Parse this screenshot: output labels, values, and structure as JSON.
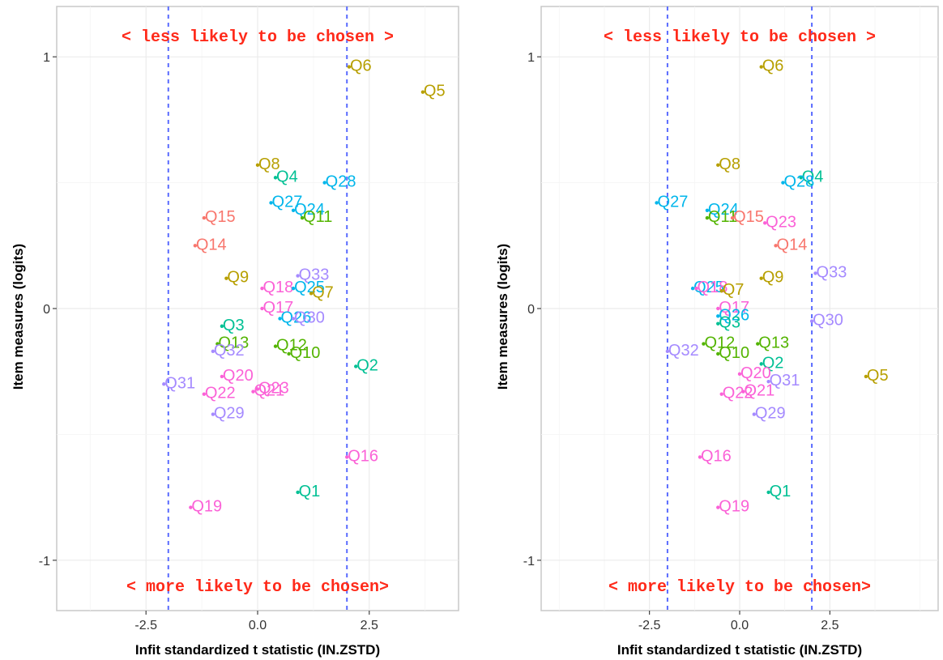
{
  "chart_data": [
    {
      "type": "scatter",
      "xlabel": "Infit standardized t statistic (IN.ZSTD)",
      "ylabel": "Item measures (logits)",
      "xlim": [
        -4.5,
        4.5
      ],
      "ylim": [
        -1.2,
        1.2
      ],
      "xticks": [
        -2.5,
        0.0,
        2.5
      ],
      "xtick_labels": [
        "-2.5",
        "0.0",
        "2.5"
      ],
      "yticks": [
        -1,
        0,
        1
      ],
      "ytick_labels": [
        "-1",
        "0",
        "1"
      ],
      "ref_lines_x": [
        -2,
        2
      ],
      "grid": true,
      "annotations": {
        "top": "< less likely to be chosen >",
        "bottom": "< more likely to be chosen>"
      },
      "points": [
        {
          "label": "Q6",
          "x": 2.05,
          "y": 0.96,
          "color": "#b79f00"
        },
        {
          "label": "Q5",
          "x": 3.7,
          "y": 0.86,
          "color": "#b79f00"
        },
        {
          "label": "Q8",
          "x": 0.0,
          "y": 0.57,
          "color": "#b79f00"
        },
        {
          "label": "Q4",
          "x": 0.4,
          "y": 0.52,
          "color": "#00c094"
        },
        {
          "label": "Q28",
          "x": 1.5,
          "y": 0.5,
          "color": "#00b6eb"
        },
        {
          "label": "Q27",
          "x": 0.3,
          "y": 0.42,
          "color": "#00b6eb"
        },
        {
          "label": "Q24",
          "x": 0.8,
          "y": 0.39,
          "color": "#00b6eb"
        },
        {
          "label": "Q11",
          "x": 1.0,
          "y": 0.36,
          "color": "#53b400"
        },
        {
          "label": "Q15",
          "x": -1.2,
          "y": 0.36,
          "color": "#f8766d"
        },
        {
          "label": "Q14",
          "x": -1.4,
          "y": 0.25,
          "color": "#f8766d"
        },
        {
          "label": "Q9",
          "x": -0.7,
          "y": 0.12,
          "color": "#b79f00"
        },
        {
          "label": "Q33",
          "x": 0.9,
          "y": 0.13,
          "color": "#a58aff"
        },
        {
          "label": "Q18",
          "x": 0.1,
          "y": 0.08,
          "color": "#fb61d7"
        },
        {
          "label": "Q25",
          "x": 0.8,
          "y": 0.08,
          "color": "#00b6eb"
        },
        {
          "label": "Q7",
          "x": 1.2,
          "y": 0.06,
          "color": "#b79f00"
        },
        {
          "label": "Q17",
          "x": 0.1,
          "y": 0.0,
          "color": "#fb61d7"
        },
        {
          "label": "Q26",
          "x": 0.5,
          "y": -0.04,
          "color": "#00b6eb"
        },
        {
          "label": "Q30",
          "x": 0.8,
          "y": -0.04,
          "color": "#a58aff"
        },
        {
          "label": "Q3",
          "x": -0.8,
          "y": -0.07,
          "color": "#00c094"
        },
        {
          "label": "Q13",
          "x": -0.9,
          "y": -0.14,
          "color": "#53b400"
        },
        {
          "label": "Q12",
          "x": 0.4,
          "y": -0.15,
          "color": "#53b400"
        },
        {
          "label": "Q32",
          "x": -1.0,
          "y": -0.17,
          "color": "#a58aff"
        },
        {
          "label": "Q10",
          "x": 0.7,
          "y": -0.18,
          "color": "#53b400"
        },
        {
          "label": "Q2",
          "x": 2.2,
          "y": -0.23,
          "color": "#00c094"
        },
        {
          "label": "Q20",
          "x": -0.8,
          "y": -0.27,
          "color": "#fb61d7"
        },
        {
          "label": "Q31",
          "x": -2.1,
          "y": -0.3,
          "color": "#a58aff"
        },
        {
          "label": "Q23",
          "x": 0.0,
          "y": -0.32,
          "color": "#fb61d7"
        },
        {
          "label": "Q21",
          "x": -0.1,
          "y": -0.33,
          "color": "#fb61d7"
        },
        {
          "label": "Q22",
          "x": -1.2,
          "y": -0.34,
          "color": "#fb61d7"
        },
        {
          "label": "Q29",
          "x": -1.0,
          "y": -0.42,
          "color": "#a58aff"
        },
        {
          "label": "Q16",
          "x": 2.0,
          "y": -0.59,
          "color": "#fb61d7"
        },
        {
          "label": "Q1",
          "x": 0.9,
          "y": -0.73,
          "color": "#00c094"
        },
        {
          "label": "Q19",
          "x": -1.5,
          "y": -0.79,
          "color": "#fb61d7"
        }
      ]
    },
    {
      "type": "scatter",
      "xlabel": "Infit standardized t statistic (IN.ZSTD)",
      "ylabel": "Item measures (logits)",
      "xlim": [
        -5.5,
        5.5
      ],
      "ylim": [
        -1.2,
        1.2
      ],
      "xticks": [
        -2.5,
        0.0,
        2.5
      ],
      "xtick_labels": [
        "-2.5",
        "0.0",
        "2.5"
      ],
      "yticks": [
        -1,
        0,
        1
      ],
      "ytick_labels": [
        "-1",
        "0",
        "1"
      ],
      "ref_lines_x": [
        -2,
        2
      ],
      "grid": true,
      "annotations": {
        "top": "< less likely to be chosen >",
        "bottom": "< more likely to be chosen>"
      },
      "points": [
        {
          "label": "Q6",
          "x": 0.6,
          "y": 0.96,
          "color": "#b79f00"
        },
        {
          "label": "Q8",
          "x": -0.6,
          "y": 0.57,
          "color": "#b79f00"
        },
        {
          "label": "Q4",
          "x": 1.7,
          "y": 0.52,
          "color": "#00c094"
        },
        {
          "label": "Q28",
          "x": 1.2,
          "y": 0.5,
          "color": "#00b6eb"
        },
        {
          "label": "Q27",
          "x": -2.3,
          "y": 0.42,
          "color": "#00b6eb"
        },
        {
          "label": "Q24",
          "x": -0.9,
          "y": 0.39,
          "color": "#00b6eb"
        },
        {
          "label": "Q11",
          "x": -0.9,
          "y": 0.36,
          "color": "#53b400"
        },
        {
          "label": "Q15",
          "x": -0.2,
          "y": 0.36,
          "color": "#f8766d"
        },
        {
          "label": "Q23",
          "x": 0.7,
          "y": 0.34,
          "color": "#fb61d7"
        },
        {
          "label": "Q14",
          "x": 1.0,
          "y": 0.25,
          "color": "#f8766d"
        },
        {
          "label": "Q9",
          "x": 0.6,
          "y": 0.12,
          "color": "#b79f00"
        },
        {
          "label": "Q33",
          "x": 2.1,
          "y": 0.14,
          "color": "#a58aff"
        },
        {
          "label": "Q25",
          "x": -1.3,
          "y": 0.08,
          "color": "#00b6eb"
        },
        {
          "label": "Q18",
          "x": -1.2,
          "y": 0.08,
          "color": "#fb61d7"
        },
        {
          "label": "Q7",
          "x": -0.5,
          "y": 0.07,
          "color": "#b79f00"
        },
        {
          "label": "Q17",
          "x": -0.6,
          "y": 0.0,
          "color": "#fb61d7"
        },
        {
          "label": "Q26",
          "x": -0.6,
          "y": -0.03,
          "color": "#00b6eb"
        },
        {
          "label": "Q3",
          "x": -0.6,
          "y": -0.06,
          "color": "#00c094"
        },
        {
          "label": "Q30",
          "x": 2.0,
          "y": -0.05,
          "color": "#a58aff"
        },
        {
          "label": "Q12",
          "x": -1.0,
          "y": -0.14,
          "color": "#53b400"
        },
        {
          "label": "Q13",
          "x": 0.5,
          "y": -0.14,
          "color": "#53b400"
        },
        {
          "label": "Q32",
          "x": -2.0,
          "y": -0.17,
          "color": "#a58aff"
        },
        {
          "label": "Q10",
          "x": -0.6,
          "y": -0.18,
          "color": "#53b400"
        },
        {
          "label": "Q2",
          "x": 0.6,
          "y": -0.22,
          "color": "#00c094"
        },
        {
          "label": "Q20",
          "x": 0.0,
          "y": -0.26,
          "color": "#fb61d7"
        },
        {
          "label": "Q5",
          "x": 3.5,
          "y": -0.27,
          "color": "#b79f00"
        },
        {
          "label": "Q31",
          "x": 0.8,
          "y": -0.29,
          "color": "#a58aff"
        },
        {
          "label": "Q21",
          "x": 0.1,
          "y": -0.33,
          "color": "#fb61d7"
        },
        {
          "label": "Q22",
          "x": -0.5,
          "y": -0.34,
          "color": "#fb61d7"
        },
        {
          "label": "Q29",
          "x": 0.4,
          "y": -0.42,
          "color": "#a58aff"
        },
        {
          "label": "Q16",
          "x": -1.1,
          "y": -0.59,
          "color": "#fb61d7"
        },
        {
          "label": "Q1",
          "x": 0.8,
          "y": -0.73,
          "color": "#00c094"
        },
        {
          "label": "Q19",
          "x": -0.6,
          "y": -0.79,
          "color": "#fb61d7"
        }
      ]
    }
  ]
}
